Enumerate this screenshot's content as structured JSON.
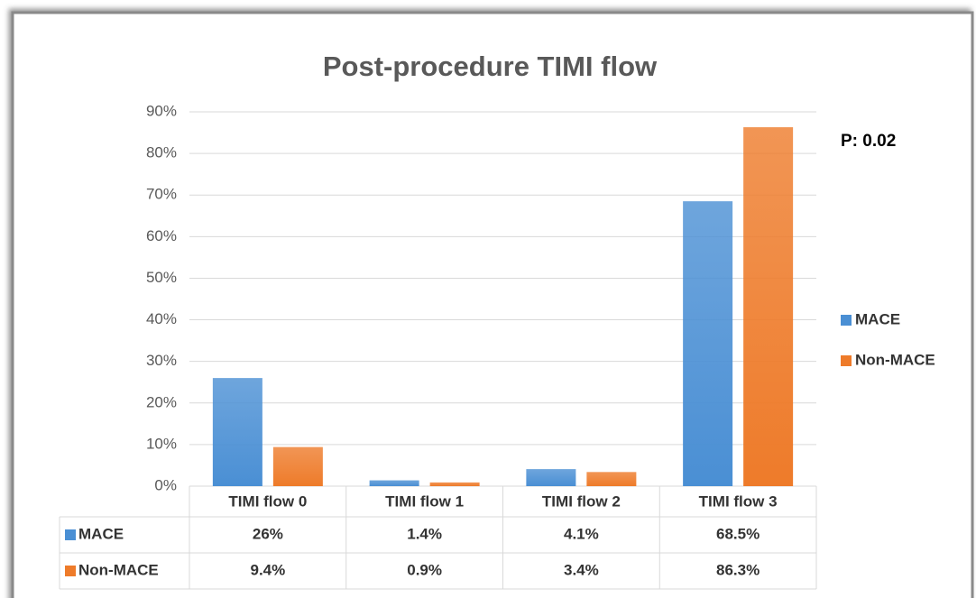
{
  "chart_data": {
    "type": "bar",
    "title": "Post-procedure TIMI flow",
    "categories": [
      "TIMI flow 0",
      "TIMI flow 1",
      "TIMI flow 2",
      "TIMI flow 3"
    ],
    "series": [
      {
        "name": "MACE",
        "color": "#4a8fd4",
        "values": [
          26,
          1.4,
          4.1,
          68.5
        ],
        "value_labels": [
          "26%",
          "1.4%",
          "4.1%",
          "68.5%"
        ]
      },
      {
        "name": "Non-MACE",
        "color": "#ee7b2a",
        "values": [
          9.4,
          0.9,
          3.4,
          86.3
        ],
        "value_labels": [
          "9.4%",
          "0.9%",
          "3.4%",
          "86.3%"
        ]
      }
    ],
    "ylim": [
      0,
      90
    ],
    "yticks": [
      {
        "value": 0,
        "label": "0%"
      },
      {
        "value": 10,
        "label": "10%"
      },
      {
        "value": 20,
        "label": "20%"
      },
      {
        "value": 30,
        "label": "30%"
      },
      {
        "value": 40,
        "label": "40%"
      },
      {
        "value": 50,
        "label": "50%"
      },
      {
        "value": 60,
        "label": "60%"
      },
      {
        "value": 70,
        "label": "70%"
      },
      {
        "value": 80,
        "label": "80%"
      },
      {
        "value": 90,
        "label": "90%"
      }
    ],
    "grid": true,
    "legend": "right",
    "annotations": [
      "P: 0.02"
    ]
  }
}
